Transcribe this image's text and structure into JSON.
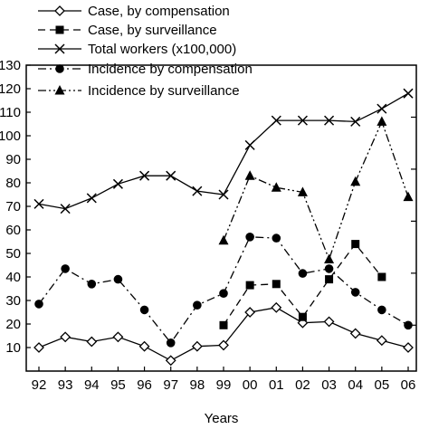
{
  "chart_data": {
    "type": "line",
    "xlabel": "Years",
    "categories": [
      "92",
      "93",
      "94",
      "95",
      "96",
      "97",
      "98",
      "99",
      "00",
      "01",
      "02",
      "03",
      "04",
      "05",
      "06"
    ],
    "left_y_ticks": [
      "10",
      "20",
      "30",
      "40",
      "50",
      "60",
      "70",
      "80",
      "90",
      "100",
      "110",
      "120",
      "130"
    ],
    "ylim": [
      0,
      130
    ],
    "grid": false,
    "legend_position": "top",
    "series": [
      {
        "name": "Case, by compensation",
        "marker": "diamond-open",
        "dash": "solid",
        "values": [
          10,
          14.5,
          12.5,
          14.5,
          10.5,
          4.5,
          10.5,
          11,
          25,
          27,
          20.5,
          21,
          16,
          13,
          10
        ]
      },
      {
        "name": "Case, by surveillance",
        "marker": "square",
        "dash": "dashed",
        "values": [
          null,
          null,
          null,
          null,
          null,
          null,
          null,
          19.5,
          36.5,
          37,
          23,
          39,
          54,
          40,
          null
        ]
      },
      {
        "name": "Total workers (x100,000)",
        "marker": "x",
        "dash": "solid",
        "values": [
          71,
          69,
          73.5,
          79.5,
          83,
          83,
          76.5,
          75,
          96,
          106.5,
          106.5,
          106.5,
          106,
          111.5,
          118
        ]
      },
      {
        "name": "Incidence by compensation",
        "marker": "circle",
        "dash": "dash-dot",
        "values": [
          28.5,
          43.5,
          37,
          39,
          26,
          12,
          28,
          33,
          57,
          56.5,
          41.5,
          43.5,
          33.5,
          26,
          19.5
        ]
      },
      {
        "name": "Incidence by surveillance",
        "marker": "triangle",
        "dash": "dash-dot-dot",
        "values": [
          null,
          null,
          null,
          null,
          null,
          null,
          null,
          55.5,
          83,
          78,
          76,
          47.5,
          80.5,
          106,
          74
        ]
      }
    ]
  }
}
